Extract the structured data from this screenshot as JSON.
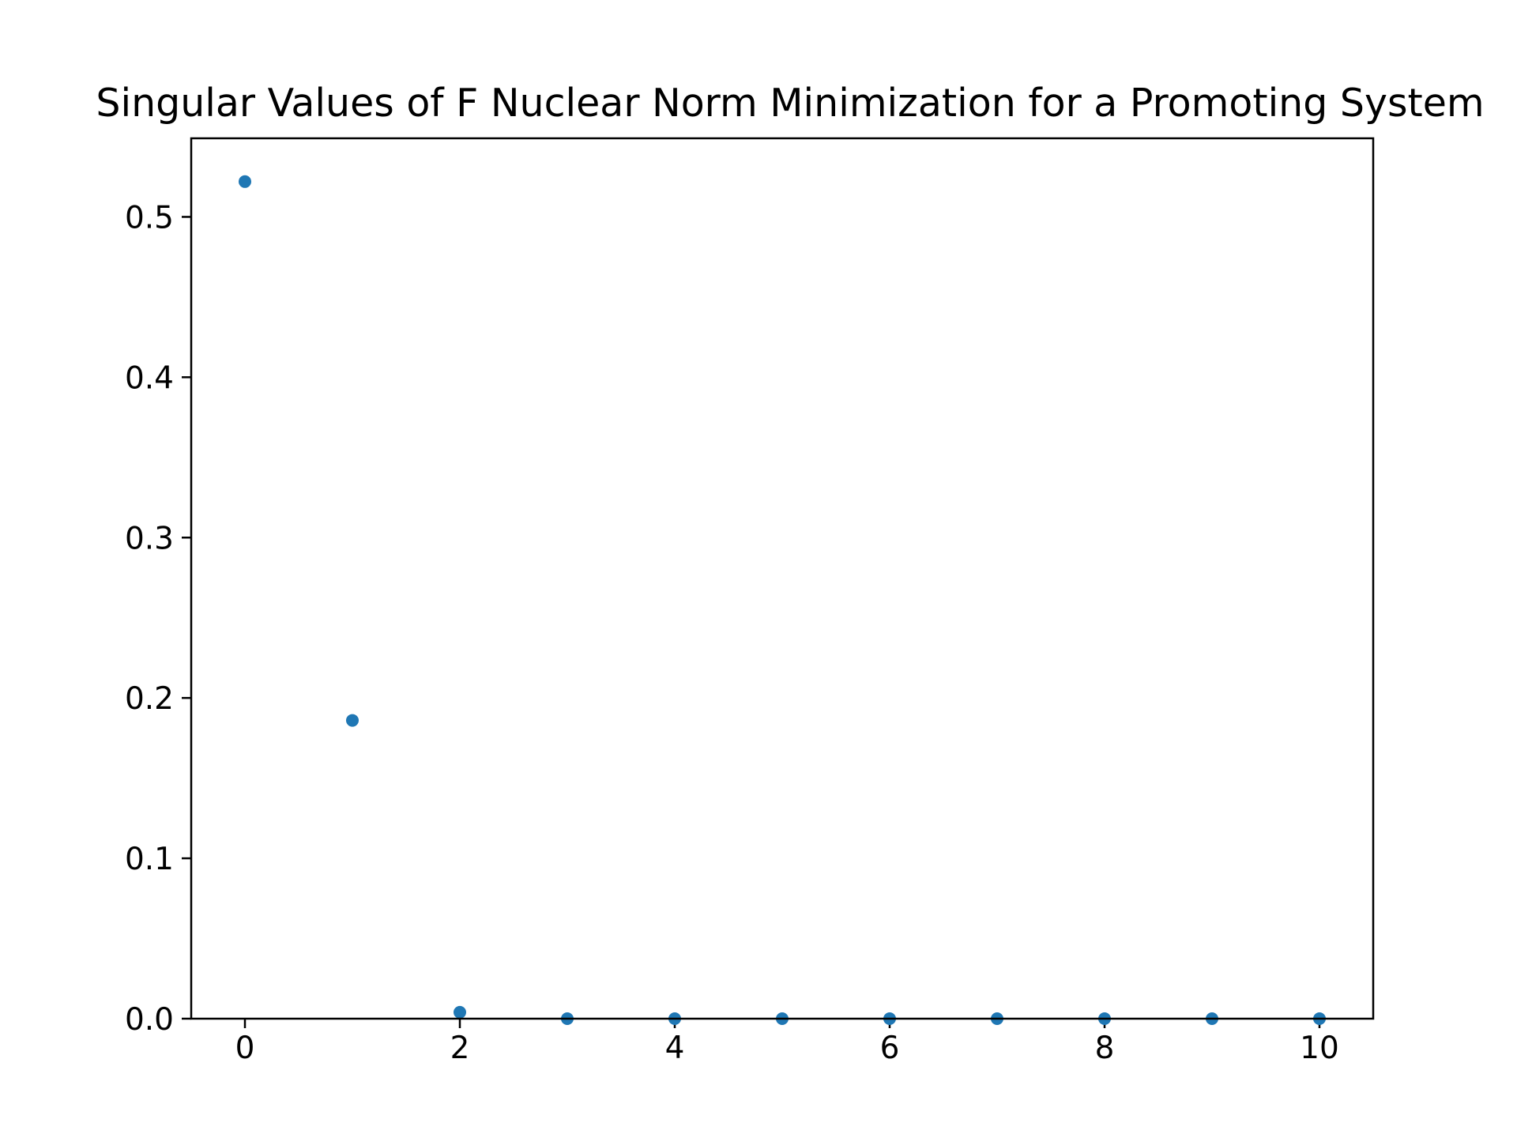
{
  "chart_data": {
    "type": "scatter",
    "title": "Singular Values of F Nuclear Norm Minimization for a Promoting System",
    "xlabel": "",
    "ylabel": "",
    "x": [
      0,
      1,
      2,
      3,
      4,
      5,
      6,
      7,
      8,
      9,
      10
    ],
    "series": [
      {
        "values": [
          0.522,
          0.186,
          0.004,
          0.0,
          0.0,
          0.0,
          0.0,
          0.0,
          0.0,
          0.0,
          0.0
        ]
      }
    ],
    "xlim": [
      -0.5,
      10.5
    ],
    "ylim": [
      0.0,
      0.549
    ],
    "xticks": [
      0,
      2,
      4,
      6,
      8,
      10
    ],
    "xtick_labels": [
      "0",
      "2",
      "4",
      "6",
      "8",
      "10"
    ],
    "yticks": [
      0.0,
      0.1,
      0.2,
      0.3,
      0.4,
      0.5
    ],
    "ytick_labels": [
      "0.0",
      "0.1",
      "0.2",
      "0.3",
      "0.4",
      "0.5"
    ],
    "grid": false,
    "colors": {
      "marker": "#1f77b4",
      "axes": "#000000"
    }
  }
}
